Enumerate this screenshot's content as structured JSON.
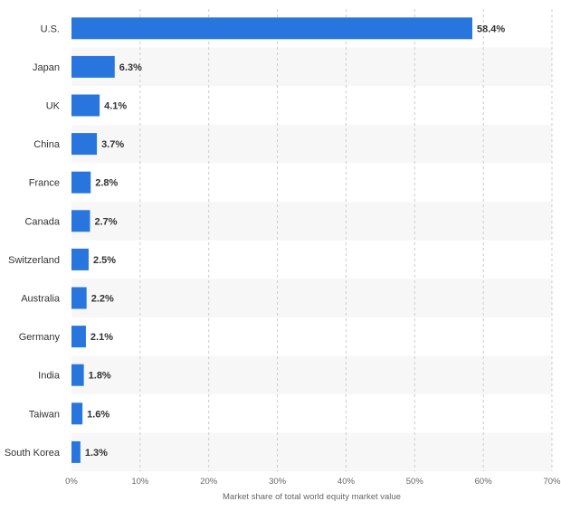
{
  "chart_data": {
    "type": "bar",
    "orientation": "horizontal",
    "categories": [
      "U.S.",
      "Japan",
      "UK",
      "China",
      "France",
      "Canada",
      "Switzerland",
      "Australia",
      "Germany",
      "India",
      "Taiwan",
      "South Korea"
    ],
    "values": [
      58.4,
      6.3,
      4.1,
      3.7,
      2.8,
      2.7,
      2.5,
      2.2,
      2.1,
      1.8,
      1.6,
      1.3
    ],
    "value_labels": [
      "58.4%",
      "6.3%",
      "4.1%",
      "3.7%",
      "2.8%",
      "2.7%",
      "2.5%",
      "2.2%",
      "2.1%",
      "1.8%",
      "1.6%",
      "1.3%"
    ],
    "x_ticks": [
      0,
      10,
      20,
      30,
      40,
      50,
      60,
      70
    ],
    "x_tick_labels": [
      "0%",
      "10%",
      "20%",
      "30%",
      "40%",
      "50%",
      "60%",
      "70%"
    ],
    "xlim": [
      0,
      70
    ],
    "xlabel": "Market share of total world equity market value",
    "grid": true,
    "grid_style": "dashed vertical",
    "bar_color": "#2876dd",
    "band_color": "#f7f7f7"
  }
}
